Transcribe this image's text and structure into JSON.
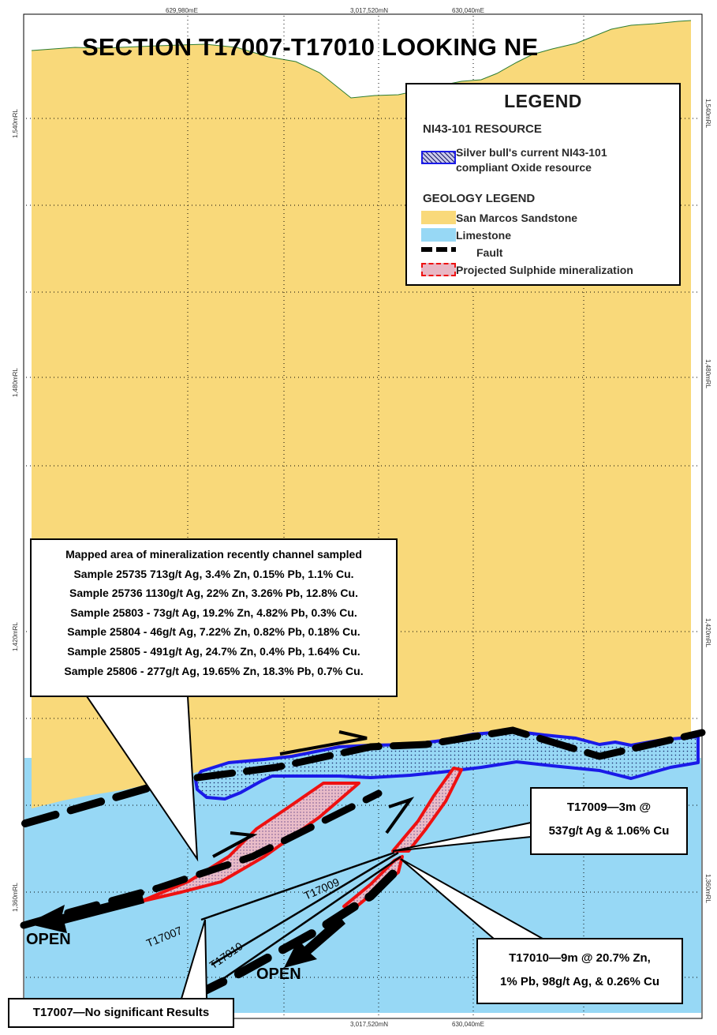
{
  "title": "SECTION T17007-T17010 LOOKING NE",
  "grid_labels": {
    "top": [
      "629,980mE",
      "3,017,520mN",
      "630,040mE"
    ],
    "bottom": [
      "3,017,520mN",
      "630,040mE"
    ],
    "left": [
      "1,540mRL",
      "1,480mRL",
      "1,420mRL",
      "1,360mRL"
    ],
    "right": [
      "1,540mRL",
      "1,480mRL",
      "1,420mRL",
      "1,360mRL"
    ]
  },
  "legend": {
    "title": "LEGEND",
    "resource_heading": "NI43-101 RESOURCE",
    "resource_label_1": "Silver bull's current NI43-101",
    "resource_label_2": "compliant Oxide resource",
    "geology_heading": "GEOLOGY LEGEND",
    "items": [
      {
        "label": "San Marcos Sandstone",
        "color": "#f9d97a"
      },
      {
        "label": "Limestone",
        "color": "#97d8f5"
      },
      {
        "label": "Fault",
        "color": "#000000"
      },
      {
        "label": "Projected Sulphide mineralization",
        "color": "#e8b7c4"
      }
    ]
  },
  "colors": {
    "sandstone": "#f9d97a",
    "limestone": "#97d8f5",
    "resource_outline": "#1a1ae8",
    "sulphide_outline": "#ee1111",
    "topo_line": "#2e7d32"
  },
  "samples_box": {
    "heading": "Mapped area of mineralization recently channel sampled",
    "rows": [
      "Sample 25735     713g/t Ag, 3.4% Zn, 0.15% Pb, 1.1% Cu.",
      "Sample 25736     1130g/t Ag, 22% Zn, 3.26% Pb, 12.8% Cu.",
      "Sample 25803  - 73g/t Ag, 19.2% Zn, 4.82% Pb, 0.3% Cu.",
      "Sample 25804  - 46g/t Ag, 7.22% Zn, 0.82% Pb, 0.18% Cu.",
      "Sample 25805  - 491g/t Ag, 24.7% Zn, 0.4% Pb, 1.64% Cu.",
      "Sample 25806  - 277g/t Ag, 19.65% Zn, 18.3% Pb, 0.7% Cu."
    ]
  },
  "callouts": {
    "t17009_line1": "T17009—3m @",
    "t17009_line2": "537g/t Ag & 1.06% Cu",
    "t17010_line1": "T17010—9m @ 20.7% Zn,",
    "t17010_line2": "1% Pb, 98g/t Ag, & 0.26% Cu",
    "t17007": "T17007—No significant Results"
  },
  "drillhole_labels": [
    "T17007",
    "T17009",
    "T17010"
  ],
  "open_labels": [
    "OPEN",
    "OPEN"
  ]
}
